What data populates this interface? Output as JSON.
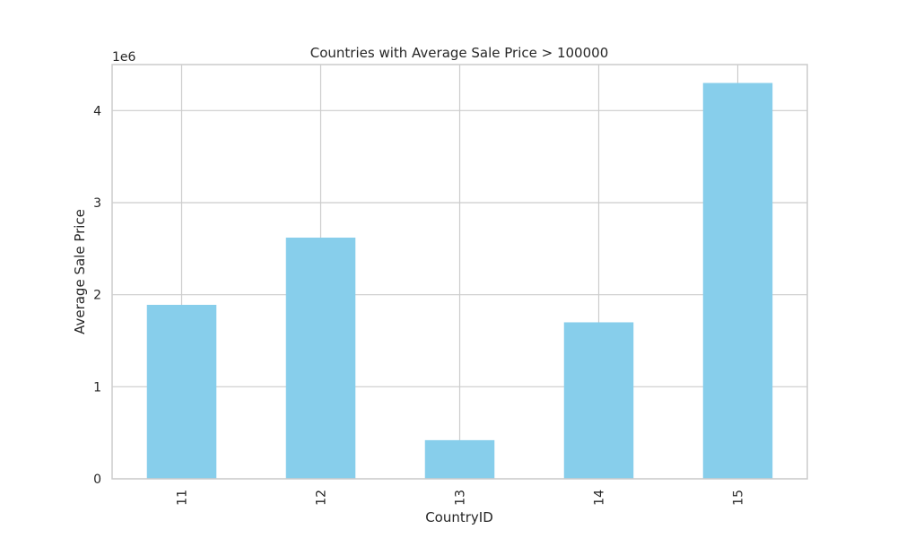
{
  "chart_data": {
    "type": "bar",
    "title": "Countries with Average Sale Price > 100000",
    "xlabel": "CountryID",
    "ylabel": "Average Sale Price",
    "categories": [
      "11",
      "12",
      "13",
      "14",
      "15"
    ],
    "values": [
      1890000,
      2620000,
      420000,
      1700000,
      4300000
    ],
    "ylim": [
      0,
      4500000
    ],
    "yticks": [
      0,
      1000000,
      2000000,
      3000000,
      4000000
    ],
    "ytick_labels": [
      "0",
      "1",
      "2",
      "3",
      "4"
    ],
    "y_offset_label": "1e6",
    "x_tick_rotation": "vertical",
    "grid": true,
    "colors": {
      "bar": "#87CEEB",
      "grid": "#cccccc",
      "axes": "#cccccc",
      "text": "#262626"
    }
  }
}
